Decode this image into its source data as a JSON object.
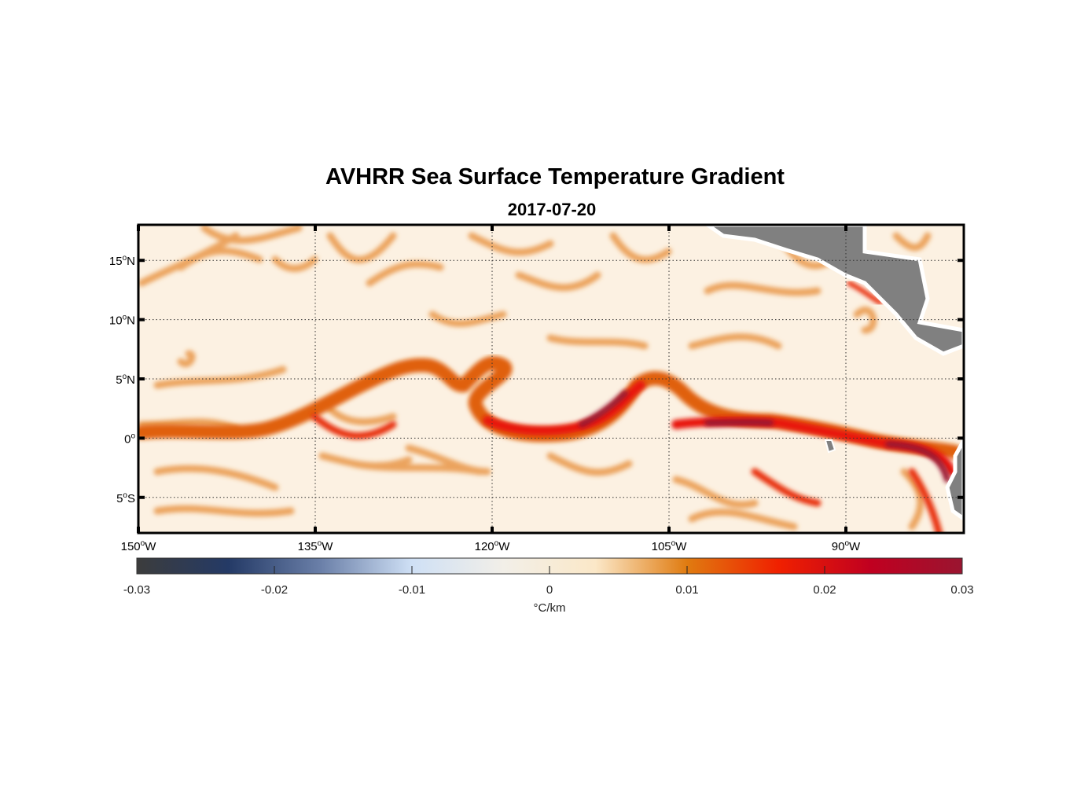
{
  "title": "AVHRR Sea Surface Temperature Gradient",
  "subtitle": "2017-07-20",
  "map": {
    "lon_range": [
      -150,
      -80
    ],
    "lat_range": [
      -8,
      18
    ],
    "lon_ticks": [
      {
        "value": -150,
        "deg": "150",
        "hemi": "W"
      },
      {
        "value": -135,
        "deg": "135",
        "hemi": "W"
      },
      {
        "value": -120,
        "deg": "120",
        "hemi": "W"
      },
      {
        "value": -105,
        "deg": "105",
        "hemi": "W"
      },
      {
        "value": -90,
        "deg": "90",
        "hemi": "W"
      }
    ],
    "lat_ticks": [
      {
        "value": 15,
        "deg": "15",
        "hemi": "N"
      },
      {
        "value": 10,
        "deg": "10",
        "hemi": "N"
      },
      {
        "value": 5,
        "deg": "5",
        "hemi": "N"
      },
      {
        "value": 0,
        "deg": "0",
        "hemi": ""
      },
      {
        "value": -5,
        "deg": "5",
        "hemi": "S"
      }
    ],
    "land_color": "#808080"
  },
  "colorbar": {
    "label": "°C/km",
    "range": [
      -0.03,
      0.03
    ],
    "ticks": [
      "-0.03",
      "-0.02",
      "-0.01",
      "0",
      "0.01",
      "0.02",
      "0.03"
    ],
    "colors": [
      "#3c3c3c",
      "#243a66",
      "#6a7fa8",
      "#cfe0f5",
      "#f2efe8",
      "#fbe8c8",
      "#e07b10",
      "#f02000",
      "#c00020",
      "#9a1530"
    ]
  }
}
